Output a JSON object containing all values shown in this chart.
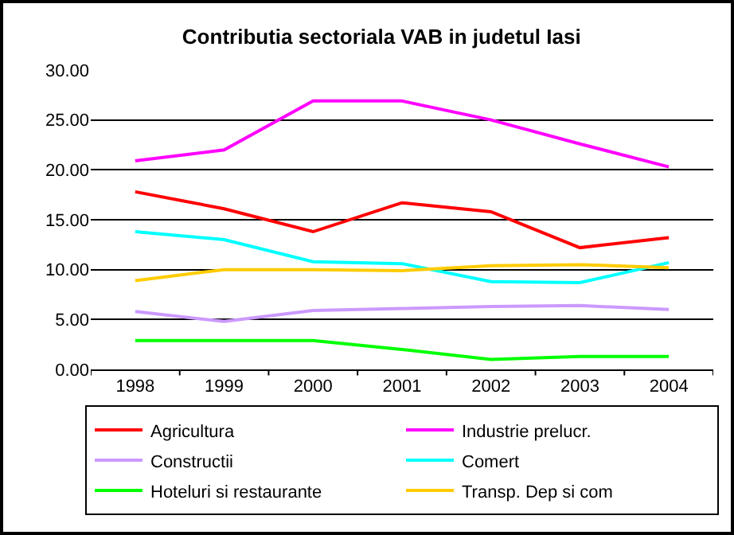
{
  "chart_data": {
    "type": "line",
    "title": "Contributia sectoriala VAB in judetul Iasi",
    "categories": [
      "1998",
      "1999",
      "2000",
      "2001",
      "2002",
      "2003",
      "2004"
    ],
    "series": [
      {
        "name": "Agricultura",
        "color": "#ff0000",
        "values": [
          17.8,
          16.1,
          13.8,
          16.7,
          15.8,
          12.2,
          13.2
        ]
      },
      {
        "name": "Industrie prelucr.",
        "color": "#ff00ff",
        "values": [
          20.9,
          22.0,
          26.9,
          26.9,
          25.0,
          22.6,
          20.3
        ]
      },
      {
        "name": "Constructii",
        "color": "#cc99ff",
        "values": [
          5.8,
          4.8,
          5.9,
          6.1,
          6.3,
          6.4,
          6.0
        ]
      },
      {
        "name": "Comert",
        "color": "#00ffff",
        "values": [
          13.8,
          13.0,
          10.8,
          10.6,
          8.8,
          8.7,
          10.7
        ]
      },
      {
        "name": "Hoteluri si restaurante",
        "color": "#00ff00",
        "values": [
          2.9,
          2.9,
          2.9,
          2.0,
          1.0,
          1.3,
          1.3
        ]
      },
      {
        "name": "Transp. Dep si com",
        "color": "#ffcc00",
        "values": [
          8.9,
          10.0,
          10.0,
          9.9,
          10.4,
          10.5,
          10.2
        ]
      }
    ],
    "ylim": [
      0,
      30
    ],
    "yticks": [
      {
        "value": 0,
        "label": "0.00"
      },
      {
        "value": 5,
        "label": "5.00"
      },
      {
        "value": 10,
        "label": "10.00"
      },
      {
        "value": 15,
        "label": "15.00"
      },
      {
        "value": 20,
        "label": "20.00"
      },
      {
        "value": 25,
        "label": "25.00"
      },
      {
        "value": 30,
        "label": "30.00"
      }
    ],
    "grid": "y",
    "legend": "bottom",
    "marker": "none",
    "line_style": "solid"
  }
}
